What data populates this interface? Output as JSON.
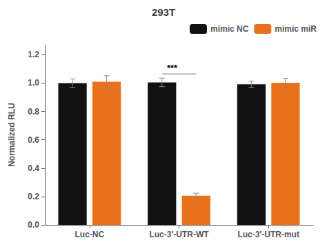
{
  "chart_data": {
    "type": "bar",
    "title": "293T",
    "ylabel": "Normalized RLU",
    "categories": [
      "Luc-NC",
      "Luc-3'-UTR-WT",
      "Luc-3'-UTR-mut"
    ],
    "series": [
      {
        "name": "mimic NC",
        "color": "#111111",
        "values": [
          1.0,
          1.005,
          0.992
        ],
        "errors": [
          0.03,
          0.03,
          0.022
        ]
      },
      {
        "name": "mimic miR",
        "color": "#E8721C",
        "values": [
          1.01,
          0.205,
          1.002
        ],
        "errors": [
          0.042,
          0.018,
          0.032
        ]
      }
    ],
    "ylim": [
      0,
      1.27
    ],
    "yticks": [
      {
        "value": 0,
        "label": "0.0"
      },
      0.2,
      0.4,
      0.6,
      0.8,
      {
        "value": 1,
        "label": "1.0"
      },
      1.2
    ],
    "grid": false,
    "legend": "upper right",
    "annotations": [
      {
        "text": "***",
        "category": "Luc-3'-UTR-WT",
        "y": 1.075,
        "line_y": 1.065
      }
    ]
  }
}
